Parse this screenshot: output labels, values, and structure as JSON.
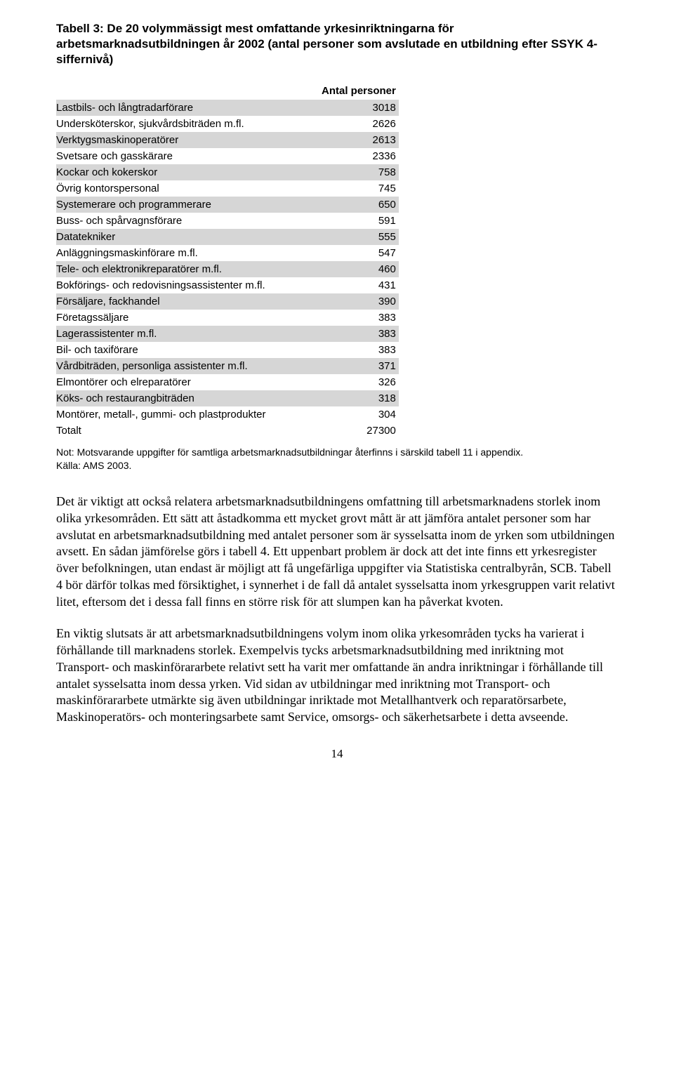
{
  "table_title": "Tabell 3: De 20 volymmässigt mest omfattande yrkesinriktningarna för arbetsmarknadsutbildningen år 2002 (antal personer som avslutade en utbildning efter SSYK 4-siffernivå)",
  "header_col2": "Antal personer",
  "rows": [
    {
      "shade": true,
      "label": "Lastbils- och långtradarförare",
      "value": "3018"
    },
    {
      "shade": false,
      "label": "Undersköterskor, sjukvårdsbiträden m.fl.",
      "value": "2626"
    },
    {
      "shade": true,
      "label": "Verktygsmaskinoperatörer",
      "value": "2613"
    },
    {
      "shade": false,
      "label": "Svetsare och gasskärare",
      "value": "2336"
    },
    {
      "shade": true,
      "label": "Kockar och kokerskor",
      "value": "758"
    },
    {
      "shade": false,
      "label": "Övrig kontorspersonal",
      "value": "745"
    },
    {
      "shade": true,
      "label": "Systemerare och programmerare",
      "value": "650"
    },
    {
      "shade": false,
      "label": "Buss- och spårvagnsförare",
      "value": "591"
    },
    {
      "shade": true,
      "label": "Datatekniker",
      "value": "555"
    },
    {
      "shade": false,
      "label": "Anläggningsmaskinförare m.fl.",
      "value": "547"
    },
    {
      "shade": true,
      "label": "Tele- och elektronikreparatörer m.fl.",
      "value": "460"
    },
    {
      "shade": false,
      "label": "Bokförings- och redovisningsassistenter m.fl.",
      "value": "431"
    },
    {
      "shade": true,
      "label": "Försäljare, fackhandel",
      "value": "390"
    },
    {
      "shade": false,
      "label": "Företagssäljare",
      "value": "383"
    },
    {
      "shade": true,
      "label": "Lagerassistenter m.fl.",
      "value": "383"
    },
    {
      "shade": false,
      "label": "Bil- och taxiförare",
      "value": "383"
    },
    {
      "shade": true,
      "label": "Vårdbiträden, personliga assistenter m.fl.",
      "value": "371"
    },
    {
      "shade": false,
      "label": "Elmontörer och elreparatörer",
      "value": "326"
    },
    {
      "shade": true,
      "label": "Köks- och restaurangbiträden",
      "value": "318"
    },
    {
      "shade": false,
      "label": "Montörer, metall-, gummi- och plastprodukter",
      "value": "304"
    },
    {
      "shade": false,
      "label": "Totalt",
      "value": "27300"
    }
  ],
  "note_line1": "Not: Motsvarande uppgifter för samtliga arbetsmarknadsutbildningar återfinns i särskild tabell 11 i appendix.",
  "note_line2": "Källa: AMS 2003.",
  "para1": "Det är viktigt att också relatera arbetsmarknadsutbildningens omfattning till arbetsmarknadens storlek inom olika yrkesområden. Ett sätt att åstadkomma ett mycket grovt mått är att jämföra antalet personer som har avslutat en arbetsmarknadsutbildning med antalet personer som är sysselsatta inom de yrken som utbildningen avsett. En sådan jämförelse görs i tabell 4. Ett uppenbart problem är dock att det inte finns ett yrkesregister över befolkningen, utan endast är möjligt att få ungefärliga uppgifter via Statistiska centralbyrån, SCB. Tabell 4 bör därför tolkas med försiktighet, i synnerhet i de fall då antalet sysselsatta inom yrkesgruppen varit relativt litet, eftersom det i dessa fall finns en större risk för att slumpen kan ha påverkat kvoten.",
  "para2": "En viktig slutsats är att arbetsmarknadsutbildningens volym inom olika yrkesområden tycks ha varierat i förhållande till marknadens storlek. Exempelvis tycks arbetsmarknadsutbildning med inriktning mot Transport- och maskinförararbete relativt sett ha varit mer omfattande än andra inriktningar i förhållande till antalet sysselsatta inom dessa yrken. Vid sidan av utbildningar med inriktning mot Transport- och maskinförararbete utmärkte sig även utbildningar inriktade mot Metallhantverk och reparatörsarbete, Maskinoperatörs- och monteringsarbete samt Service, omsorgs- och säkerhetsarbete i detta avseende.",
  "page_number": "14"
}
